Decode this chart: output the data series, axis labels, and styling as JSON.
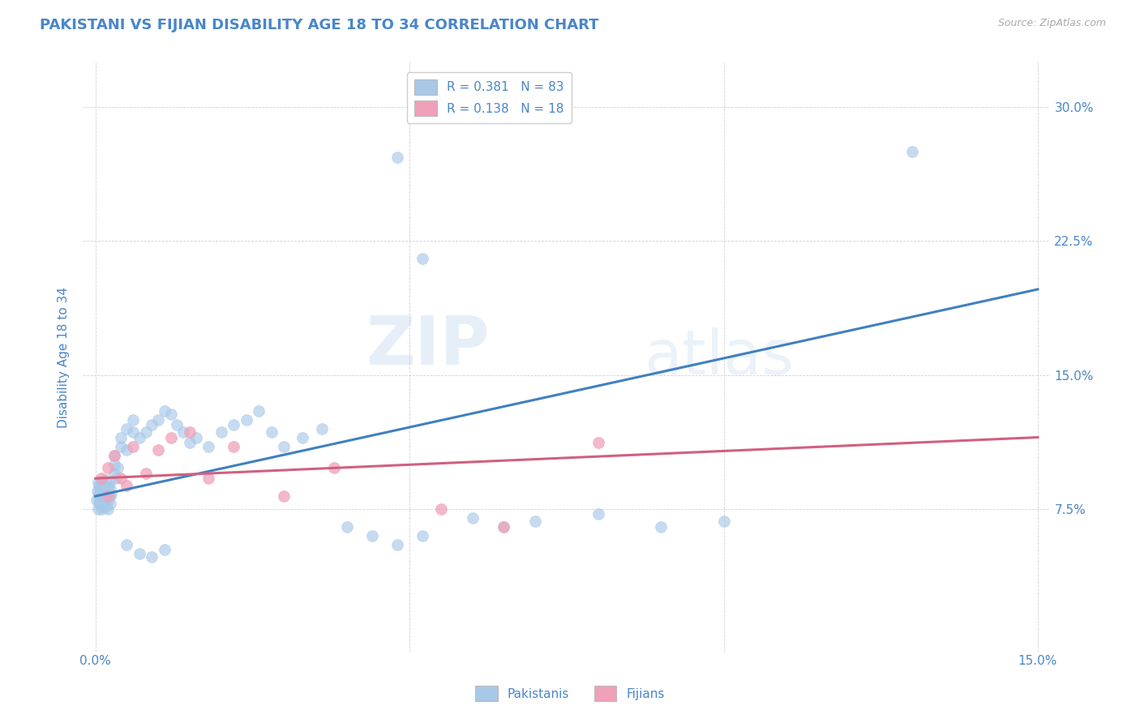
{
  "title": "PAKISTANI VS FIJIAN DISABILITY AGE 18 TO 34 CORRELATION CHART",
  "source": "Source: ZipAtlas.com",
  "ylabel": "Disability Age 18 to 34",
  "xlim": [
    -0.002,
    0.152
  ],
  "ylim": [
    -0.005,
    0.325
  ],
  "yticks": [
    0.075,
    0.15,
    0.225,
    0.3
  ],
  "ytick_labels": [
    "7.5%",
    "15.0%",
    "22.5%",
    "30.0%"
  ],
  "watermark": "ZIPatlas",
  "pakistani_color": "#A8C8E8",
  "fijian_color": "#F0A0B8",
  "pakistani_line_color": "#4080C0",
  "fijian_line_color": "#D06080",
  "bg_color": "#FFFFFF",
  "grid_color": "#CCCCCC",
  "title_color": "#4A86C8",
  "axis_label_color": "#4A86C8",
  "tick_color": "#4A86C8",
  "pak_line_x0": 0.0,
  "pak_line_y0": 0.082,
  "pak_line_x1": 0.15,
  "pak_line_y1": 0.198,
  "fij_line_x0": 0.0,
  "fij_line_y0": 0.092,
  "fij_line_x1": 0.15,
  "fij_line_y1": 0.115,
  "pakistani_x": [
    0.0002,
    0.0003,
    0.0004,
    0.0004,
    0.0005,
    0.0005,
    0.0006,
    0.0006,
    0.0007,
    0.0007,
    0.0008,
    0.0008,
    0.0009,
    0.0009,
    0.001,
    0.001,
    0.001,
    0.001,
    0.0012,
    0.0012,
    0.0013,
    0.0013,
    0.0015,
    0.0015,
    0.0016,
    0.0016,
    0.0017,
    0.0018,
    0.002,
    0.002,
    0.002,
    0.0022,
    0.0022,
    0.0024,
    0.0024,
    0.0025,
    0.003,
    0.003,
    0.003,
    0.0032,
    0.0035,
    0.004,
    0.004,
    0.005,
    0.005,
    0.006,
    0.006,
    0.007,
    0.008,
    0.009,
    0.01,
    0.011,
    0.012,
    0.013,
    0.014,
    0.015,
    0.016,
    0.018,
    0.02,
    0.022,
    0.024,
    0.026,
    0.028,
    0.03,
    0.033,
    0.036,
    0.04,
    0.044,
    0.048,
    0.052,
    0.06,
    0.065,
    0.07,
    0.08,
    0.09,
    0.1,
    0.048,
    0.052,
    0.13,
    0.005,
    0.007,
    0.009,
    0.011
  ],
  "pakistani_y": [
    0.08,
    0.085,
    0.09,
    0.075,
    0.082,
    0.088,
    0.078,
    0.083,
    0.079,
    0.086,
    0.081,
    0.087,
    0.076,
    0.083,
    0.08,
    0.085,
    0.09,
    0.075,
    0.082,
    0.088,
    0.078,
    0.084,
    0.079,
    0.086,
    0.081,
    0.091,
    0.076,
    0.083,
    0.08,
    0.087,
    0.075,
    0.082,
    0.09,
    0.078,
    0.086,
    0.083,
    0.095,
    0.1,
    0.105,
    0.092,
    0.098,
    0.11,
    0.115,
    0.108,
    0.12,
    0.118,
    0.125,
    0.115,
    0.118,
    0.122,
    0.125,
    0.13,
    0.128,
    0.122,
    0.118,
    0.112,
    0.115,
    0.11,
    0.118,
    0.122,
    0.125,
    0.13,
    0.118,
    0.11,
    0.115,
    0.12,
    0.065,
    0.06,
    0.055,
    0.06,
    0.07,
    0.065,
    0.068,
    0.072,
    0.065,
    0.068,
    0.272,
    0.215,
    0.275,
    0.055,
    0.05,
    0.048,
    0.052
  ],
  "fijian_x": [
    0.001,
    0.002,
    0.002,
    0.003,
    0.004,
    0.005,
    0.006,
    0.008,
    0.01,
    0.012,
    0.015,
    0.018,
    0.022,
    0.03,
    0.055,
    0.065,
    0.08,
    0.038
  ],
  "fijian_y": [
    0.092,
    0.082,
    0.098,
    0.105,
    0.092,
    0.088,
    0.11,
    0.095,
    0.108,
    0.115,
    0.118,
    0.092,
    0.11,
    0.082,
    0.075,
    0.065,
    0.112,
    0.098
  ]
}
